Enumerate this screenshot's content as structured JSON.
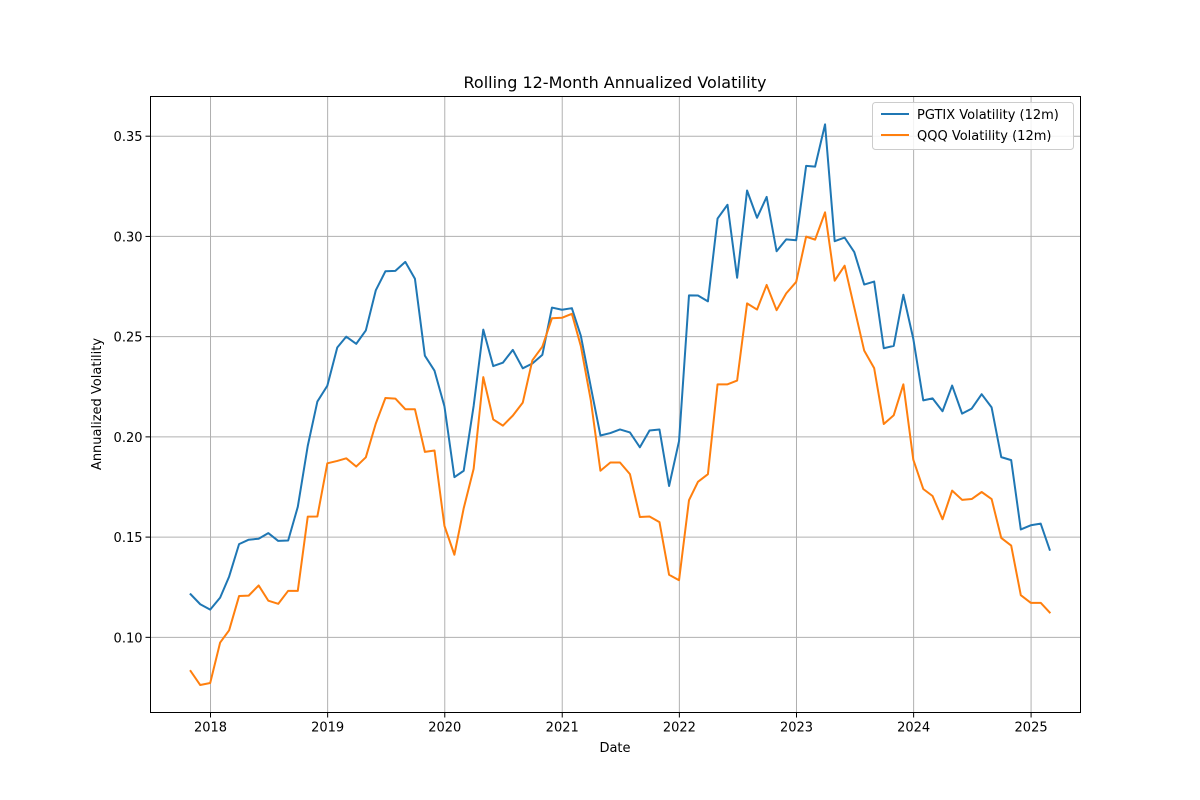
{
  "chart_data": {
    "type": "line",
    "title": "Rolling 12-Month Annualized Volatility",
    "xlabel": "Date",
    "ylabel": "Annualized Volatility",
    "x": [
      "2017-10-31",
      "2017-11-30",
      "2017-12-31",
      "2018-01-31",
      "2018-02-28",
      "2018-03-31",
      "2018-04-30",
      "2018-05-31",
      "2018-06-30",
      "2018-07-31",
      "2018-08-31",
      "2018-09-30",
      "2018-10-31",
      "2018-11-30",
      "2018-12-31",
      "2019-01-31",
      "2019-02-28",
      "2019-03-31",
      "2019-04-30",
      "2019-05-31",
      "2019-06-30",
      "2019-07-31",
      "2019-08-31",
      "2019-09-30",
      "2019-10-31",
      "2019-11-30",
      "2019-12-31",
      "2020-01-31",
      "2020-02-29",
      "2020-03-31",
      "2020-04-30",
      "2020-05-31",
      "2020-06-30",
      "2020-07-31",
      "2020-08-31",
      "2020-09-30",
      "2020-10-31",
      "2020-11-30",
      "2020-12-31",
      "2021-01-31",
      "2021-02-28",
      "2021-03-31",
      "2021-04-30",
      "2021-05-31",
      "2021-06-30",
      "2021-07-31",
      "2021-08-31",
      "2021-09-30",
      "2021-10-31",
      "2021-11-30",
      "2021-12-31",
      "2022-01-31",
      "2022-02-28",
      "2022-03-31",
      "2022-04-30",
      "2022-05-31",
      "2022-06-30",
      "2022-07-31",
      "2022-08-31",
      "2022-09-30",
      "2022-10-31",
      "2022-11-30",
      "2022-12-31",
      "2023-01-31",
      "2023-02-28",
      "2023-03-31",
      "2023-04-30",
      "2023-05-31",
      "2023-06-30",
      "2023-07-31",
      "2023-08-31",
      "2023-09-30",
      "2023-10-31",
      "2023-11-30",
      "2023-12-31",
      "2024-01-31",
      "2024-02-29",
      "2024-03-31",
      "2024-04-30",
      "2024-05-31",
      "2024-06-30",
      "2024-07-31",
      "2024-08-31",
      "2024-09-30",
      "2024-10-31",
      "2024-11-30",
      "2024-12-31",
      "2025-01-31",
      "2025-02-28"
    ],
    "series": [
      {
        "name": "PGTIX Volatility (12m)",
        "color": "#1f77b4",
        "values": [
          0.1215,
          0.1165,
          0.1138,
          0.1198,
          0.1303,
          0.1465,
          0.1487,
          0.1492,
          0.152,
          0.1481,
          0.1483,
          0.1651,
          0.1955,
          0.2176,
          0.2255,
          0.2446,
          0.25,
          0.2464,
          0.2531,
          0.2731,
          0.2826,
          0.2828,
          0.2873,
          0.2789,
          0.2405,
          0.233,
          0.2152,
          0.1799,
          0.1831,
          0.2155,
          0.2535,
          0.2353,
          0.237,
          0.2434,
          0.2342,
          0.2366,
          0.2409,
          0.2645,
          0.2634,
          0.2642,
          0.2504,
          0.225,
          0.2007,
          0.2019,
          0.2037,
          0.2022,
          0.1948,
          0.2032,
          0.2037,
          0.1755,
          0.1979,
          0.2706,
          0.2705,
          0.2676,
          0.3089,
          0.3158,
          0.2794,
          0.3229,
          0.3093,
          0.3197,
          0.2926,
          0.2985,
          0.2981,
          0.3352,
          0.3348,
          0.3559,
          0.2976,
          0.2994,
          0.2922,
          0.276,
          0.2775,
          0.2442,
          0.2454,
          0.2709,
          0.2489,
          0.2182,
          0.2192,
          0.2128,
          0.2256,
          0.2116,
          0.2141,
          0.2213,
          0.2147,
          0.1899,
          0.1884,
          0.1538,
          0.1559,
          0.1567,
          0.1437
        ]
      },
      {
        "name": "QQQ Volatility (12m)",
        "color": "#ff7f0e",
        "values": [
          0.0832,
          0.0762,
          0.0772,
          0.0974,
          0.1035,
          0.1206,
          0.1208,
          0.1259,
          0.1183,
          0.1167,
          0.1232,
          0.1232,
          0.1602,
          0.1603,
          0.1868,
          0.188,
          0.1893,
          0.1852,
          0.1898,
          0.2066,
          0.2194,
          0.2191,
          0.2138,
          0.2138,
          0.1925,
          0.1932,
          0.1556,
          0.1412,
          0.1644,
          0.1841,
          0.2298,
          0.2087,
          0.2056,
          0.2106,
          0.2171,
          0.2382,
          0.245,
          0.2592,
          0.2594,
          0.2614,
          0.2453,
          0.2183,
          0.1831,
          0.1872,
          0.1872,
          0.1814,
          0.16,
          0.1603,
          0.1575,
          0.1312,
          0.1285,
          0.1684,
          0.1776,
          0.1814,
          0.2262,
          0.2262,
          0.2281,
          0.2666,
          0.2635,
          0.2758,
          0.2632,
          0.2716,
          0.2773,
          0.2999,
          0.2984,
          0.312,
          0.2779,
          0.2854,
          0.2645,
          0.243,
          0.2343,
          0.2064,
          0.2108,
          0.2262,
          0.1886,
          0.174,
          0.1705,
          0.1589,
          0.1732,
          0.1686,
          0.169,
          0.1725,
          0.169,
          0.1496,
          0.1458,
          0.121,
          0.1172,
          0.1172,
          0.1124
        ]
      }
    ],
    "xticks": [
      "2018",
      "2019",
      "2020",
      "2021",
      "2022",
      "2023",
      "2024",
      "2025"
    ],
    "yticks": [
      0.1,
      0.15,
      0.2,
      0.25,
      0.3,
      0.35
    ],
    "ylim": [
      0.0625,
      0.3698
    ],
    "xlim": [
      "2017-06-28",
      "2025-06-04"
    ],
    "grid": true,
    "legend_position": "top-right"
  }
}
